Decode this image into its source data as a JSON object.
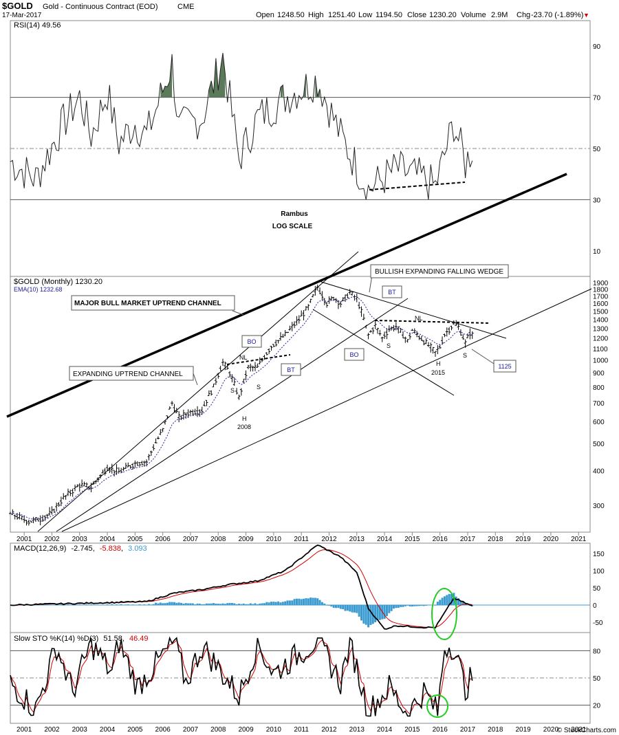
{
  "header": {
    "symbol": "$GOLD",
    "description": "Gold - Continuous Contract (EOD)",
    "exchange": "CME",
    "date": "17-Mar-2017",
    "open_label": "Open",
    "open": "1248.50",
    "high_label": "High",
    "high": "1251.40",
    "low_label": "Low",
    "low": "1194.50",
    "close_label": "Close",
    "close": "1230.20",
    "volume_label": "Volume",
    "volume": "2.9M",
    "chg_label": "Chg",
    "chg": "-23.70 (-1.89%)",
    "chg_arrow": "▼",
    "watermark": "© StockCharts.com"
  },
  "colors": {
    "price_bar": "#000000",
    "ema": "#2020a0",
    "macd_line": "#000000",
    "macd_signal": "#d40000",
    "macd_hist": "#3a9bd0",
    "sto_k": "#000000",
    "sto_d": "#d40000",
    "rsi_fill": "#5a7a5a",
    "highlight_ellipse": "#22cc22",
    "label_box_text": "#1a1aa0"
  },
  "years": [
    "2001",
    "2002",
    "2003",
    "2004",
    "2005",
    "2006",
    "2007",
    "2008",
    "2009",
    "2010",
    "2011",
    "2012",
    "2013",
    "2014",
    "2015",
    "2016",
    "2017",
    "2018",
    "2019",
    "2020",
    "2021"
  ],
  "rsi_panel": {
    "legend": "RSI(14) 49.56",
    "ticks": [
      "10",
      "30",
      "50",
      "70",
      "90"
    ],
    "center_note_1": "Rambus",
    "center_note_2": "LOG SCALE"
  },
  "price_panel": {
    "legend": "$GOLD (Monthly) 1230.20",
    "ema_legend": "EMA(10) 1232.68",
    "ticks": [
      "300",
      "400",
      "500",
      "600",
      "700",
      "800",
      "900",
      "1000",
      "1100",
      "1200",
      "1300",
      "1400",
      "1500",
      "1600",
      "1700",
      "1800",
      "1900"
    ],
    "annotations": {
      "major_channel": "MAJOR BULL MARKET UPTREND CHANNEL",
      "expanding_channel": "EXPANDING UPTREND CHANNEL",
      "wedge": "BULLISH EXPANDING FALLING WEDGE",
      "nl1": "NL",
      "nl2": "NL",
      "bo1": "BO",
      "bt1": "BT",
      "bo2": "BO",
      "bt2": "BT",
      "s1": "S",
      "s2": "S",
      "h1": "H",
      "y2008": "2008",
      "s3": "S",
      "s4": "S",
      "h2": "H",
      "y2015": "2015",
      "target": "1125"
    }
  },
  "macd_panel": {
    "legend_name": "MACD(12,26,9)",
    "legend_macd": "-2.745",
    "legend_signal": "-5.838",
    "legend_hist": "3.093",
    "ticks": [
      "-50",
      "0",
      "50",
      "100",
      "150"
    ]
  },
  "sto_panel": {
    "legend_name": "Slow STO %K(14) %D(3)",
    "legend_k": "51.58",
    "legend_d": "46.49",
    "ticks": [
      "20",
      "50",
      "80"
    ]
  },
  "chart_data": {
    "type": "line",
    "title": "$GOLD Gold - Continuous Contract (EOD) CME",
    "x_range": [
      "2000-07",
      "2021-06"
    ],
    "price_scale": "log",
    "price_ylim": [
      240,
      2000
    ],
    "price_anchors": [
      {
        "date": "2000-07",
        "price": 280
      },
      {
        "date": "2001-03",
        "price": 262
      },
      {
        "date": "2001-08",
        "price": 268
      },
      {
        "date": "2002-01",
        "price": 282
      },
      {
        "date": "2002-06",
        "price": 318
      },
      {
        "date": "2003-01",
        "price": 355
      },
      {
        "date": "2003-06",
        "price": 348
      },
      {
        "date": "2004-01",
        "price": 410
      },
      {
        "date": "2004-06",
        "price": 395
      },
      {
        "date": "2005-01",
        "price": 425
      },
      {
        "date": "2005-06",
        "price": 430
      },
      {
        "date": "2006-01",
        "price": 560
      },
      {
        "date": "2006-05",
        "price": 700
      },
      {
        "date": "2006-08",
        "price": 620
      },
      {
        "date": "2007-01",
        "price": 650
      },
      {
        "date": "2007-06",
        "price": 660
      },
      {
        "date": "2007-11",
        "price": 800
      },
      {
        "date": "2008-03",
        "price": 980
      },
      {
        "date": "2008-06",
        "price": 900
      },
      {
        "date": "2008-10",
        "price": 730
      },
      {
        "date": "2009-02",
        "price": 940
      },
      {
        "date": "2009-06",
        "price": 940
      },
      {
        "date": "2009-12",
        "price": 1120
      },
      {
        "date": "2010-06",
        "price": 1230
      },
      {
        "date": "2010-12",
        "price": 1400
      },
      {
        "date": "2011-04",
        "price": 1550
      },
      {
        "date": "2011-08",
        "price": 1830
      },
      {
        "date": "2011-12",
        "price": 1600
      },
      {
        "date": "2012-03",
        "price": 1680
      },
      {
        "date": "2012-06",
        "price": 1600
      },
      {
        "date": "2012-10",
        "price": 1750
      },
      {
        "date": "2013-01",
        "price": 1660
      },
      {
        "date": "2013-06",
        "price": 1230
      },
      {
        "date": "2013-09",
        "price": 1330
      },
      {
        "date": "2013-12",
        "price": 1200
      },
      {
        "date": "2014-03",
        "price": 1290
      },
      {
        "date": "2014-06",
        "price": 1320
      },
      {
        "date": "2014-11",
        "price": 1170
      },
      {
        "date": "2015-01",
        "price": 1280
      },
      {
        "date": "2015-06",
        "price": 1170
      },
      {
        "date": "2015-11",
        "price": 1065
      },
      {
        "date": "2016-01",
        "price": 1115
      },
      {
        "date": "2016-03",
        "price": 1235
      },
      {
        "date": "2016-07",
        "price": 1350
      },
      {
        "date": "2016-09",
        "price": 1315
      },
      {
        "date": "2016-12",
        "price": 1150
      },
      {
        "date": "2017-02",
        "price": 1255
      },
      {
        "date": "2017-03",
        "price": 1230
      }
    ],
    "series": [
      {
        "name": "$GOLD (Monthly)",
        "last": 1230.2
      },
      {
        "name": "EMA(10)",
        "last": 1232.68
      },
      {
        "name": "RSI(14)",
        "last": 49.56
      },
      {
        "name": "MACD(12,26,9)",
        "last": -2.745,
        "signal": -5.838,
        "histogram": 3.093
      },
      {
        "name": "Slow STO %K(14) %D(3)",
        "k": 51.58,
        "d": 46.49
      }
    ],
    "rsi_ylim": [
      0,
      100
    ],
    "rsi_anchors": [
      {
        "date": "2000-07",
        "v": 45
      },
      {
        "date": "2001-06",
        "v": 38
      },
      {
        "date": "2002-06",
        "v": 60
      },
      {
        "date": "2003-01",
        "v": 70
      },
      {
        "date": "2003-06",
        "v": 55
      },
      {
        "date": "2004-01",
        "v": 72
      },
      {
        "date": "2004-06",
        "v": 52
      },
      {
        "date": "2005-01",
        "v": 60
      },
      {
        "date": "2005-06",
        "v": 55
      },
      {
        "date": "2006-05",
        "v": 83
      },
      {
        "date": "2006-08",
        "v": 58
      },
      {
        "date": "2007-06",
        "v": 62
      },
      {
        "date": "2008-03",
        "v": 86
      },
      {
        "date": "2008-10",
        "v": 46
      },
      {
        "date": "2009-06",
        "v": 62
      },
      {
        "date": "2010-06",
        "v": 70
      },
      {
        "date": "2011-08",
        "v": 77
      },
      {
        "date": "2012-06",
        "v": 55
      },
      {
        "date": "2013-06",
        "v": 34
      },
      {
        "date": "2014-06",
        "v": 42
      },
      {
        "date": "2015-06",
        "v": 38
      },
      {
        "date": "2015-11",
        "v": 35
      },
      {
        "date": "2016-07",
        "v": 60
      },
      {
        "date": "2016-12",
        "v": 44
      },
      {
        "date": "2017-03",
        "v": 50
      }
    ],
    "macd_ylim": [
      -80,
      180
    ],
    "macd_anchors": [
      {
        "date": "2000-07",
        "v": 0
      },
      {
        "date": "2003-01",
        "v": 5
      },
      {
        "date": "2005-06",
        "v": 10
      },
      {
        "date": "2006-06",
        "v": 35
      },
      {
        "date": "2007-06",
        "v": 45
      },
      {
        "date": "2008-06",
        "v": 60
      },
      {
        "date": "2009-06",
        "v": 70
      },
      {
        "date": "2010-06",
        "v": 100
      },
      {
        "date": "2011-08",
        "v": 175
      },
      {
        "date": "2012-06",
        "v": 140
      },
      {
        "date": "2013-01",
        "v": 95
      },
      {
        "date": "2013-06",
        "v": -10
      },
      {
        "date": "2014-01",
        "v": -70
      },
      {
        "date": "2014-06",
        "v": -60
      },
      {
        "date": "2015-06",
        "v": -65
      },
      {
        "date": "2015-11",
        "v": -65
      },
      {
        "date": "2016-07",
        "v": 20
      },
      {
        "date": "2017-03",
        "v": -3
      }
    ],
    "sto_ylim": [
      0,
      100
    ],
    "sto_anchors": [
      {
        "date": "2000-07",
        "v": 45
      },
      {
        "date": "2001-06",
        "v": 15
      },
      {
        "date": "2002-03",
        "v": 85
      },
      {
        "date": "2002-10",
        "v": 35
      },
      {
        "date": "2003-06",
        "v": 88
      },
      {
        "date": "2004-03",
        "v": 55
      },
      {
        "date": "2004-06",
        "v": 90
      },
      {
        "date": "2005-02",
        "v": 40
      },
      {
        "date": "2006-06",
        "v": 90
      },
      {
        "date": "2006-11",
        "v": 45
      },
      {
        "date": "2007-06",
        "v": 85
      },
      {
        "date": "2008-10",
        "v": 30
      },
      {
        "date": "2009-06",
        "v": 88
      },
      {
        "date": "2010-01",
        "v": 55
      },
      {
        "date": "2011-08",
        "v": 92
      },
      {
        "date": "2012-06",
        "v": 45
      },
      {
        "date": "2012-10",
        "v": 90
      },
      {
        "date": "2013-06",
        "v": 12
      },
      {
        "date": "2014-03",
        "v": 40
      },
      {
        "date": "2014-11",
        "v": 10
      },
      {
        "date": "2015-06",
        "v": 35
      },
      {
        "date": "2015-12",
        "v": 12
      },
      {
        "date": "2016-03",
        "v": 85
      },
      {
        "date": "2016-07",
        "v": 85
      },
      {
        "date": "2016-12",
        "v": 38
      },
      {
        "date": "2017-03",
        "v": 52
      }
    ]
  }
}
